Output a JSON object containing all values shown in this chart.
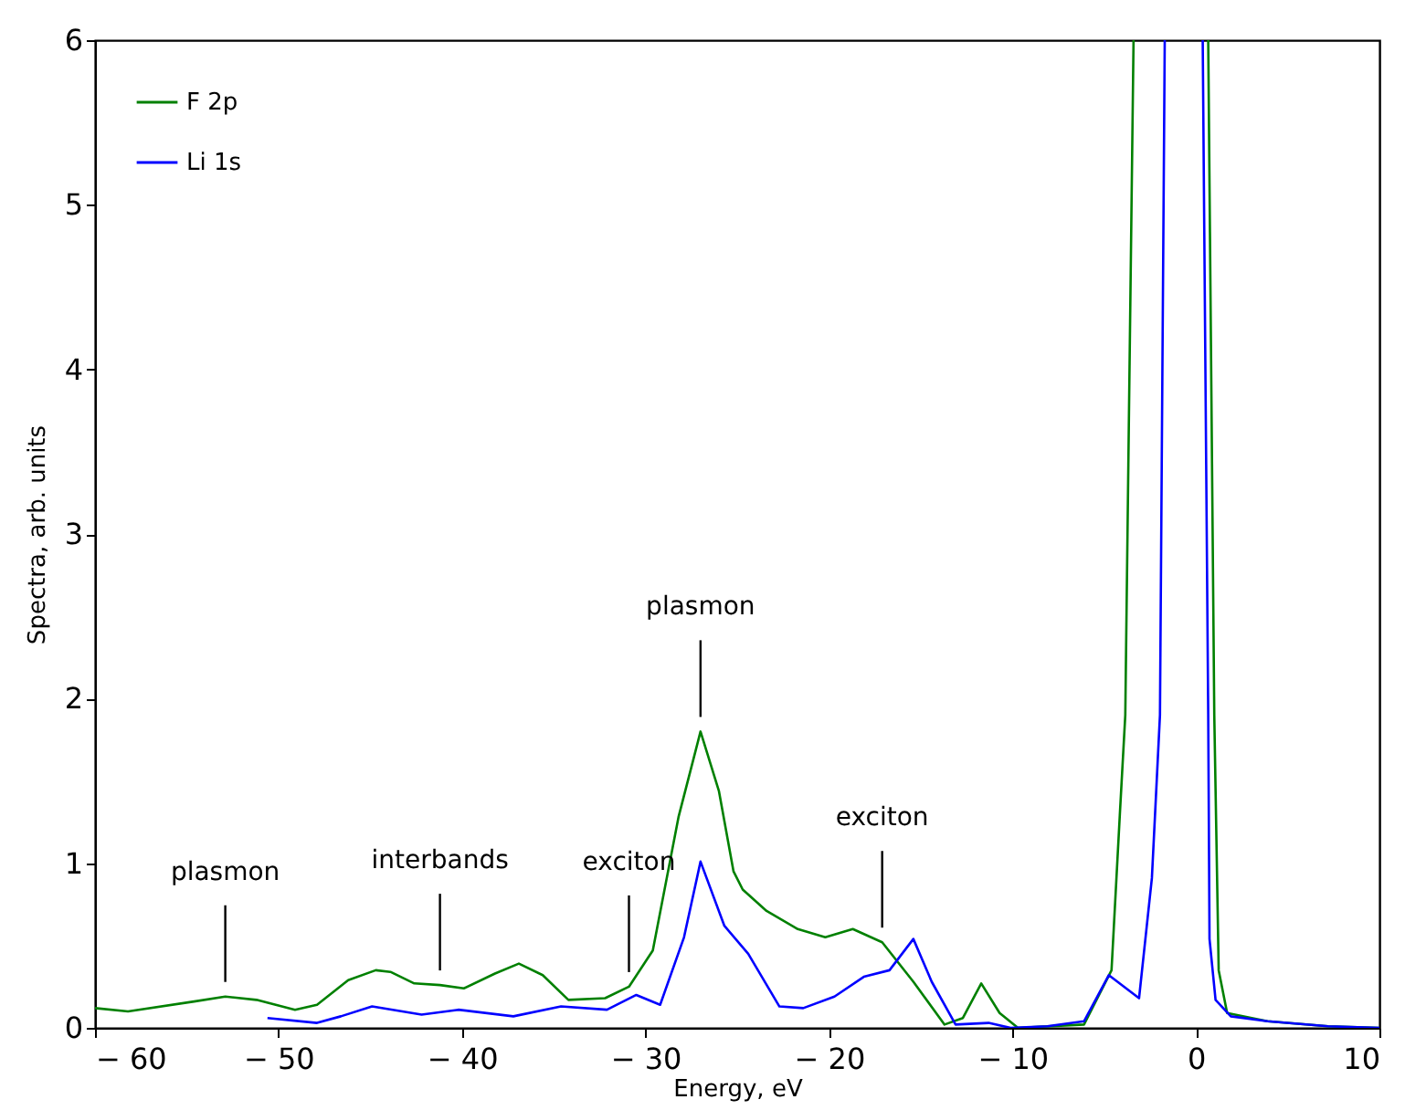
{
  "chart_data": {
    "type": "line",
    "xlabel": "Energy, eV",
    "ylabel": "Spectra, arb. units",
    "xlim": [
      -60,
      10
    ],
    "xticks": [
      {
        "value": -60,
        "label": "− 60"
      },
      {
        "value": -50,
        "label": "− 50"
      },
      {
        "value": -40,
        "label": "− 40"
      },
      {
        "value": -30,
        "label": "− 30"
      },
      {
        "value": -20,
        "label": "− 20"
      },
      {
        "value": -10,
        "label": "− 10"
      },
      0,
      10
    ],
    "ylim": [
      0,
      6
    ],
    "yticks": [
      0,
      1,
      2,
      3,
      4,
      5,
      6
    ],
    "grid": false,
    "legend": "top left",
    "marker": "none",
    "line_style": "solid",
    "series": [
      {
        "name": "F 2p",
        "color": "#008000",
        "x": [
          -60,
          -58.2,
          -54.6,
          -52.9,
          -51.2,
          -49.1,
          -47.9,
          -46.2,
          -44.7,
          -43.9,
          -42.6,
          -41.2,
          -39.9,
          -38.2,
          -36.9,
          -35.6,
          -34.2,
          -32.2,
          -30.9,
          -29.6,
          -28.2,
          -27,
          -26,
          -25.2,
          -24.7,
          -23.4,
          -21.7,
          -20.2,
          -18.7,
          -17.1,
          -15.4,
          -13.7,
          -12.7,
          -11.7,
          -10.7,
          -9.7,
          -6.1,
          -4.6,
          -4.15,
          -3.85,
          -3.4,
          -1.5,
          0.67,
          1.0,
          1.24,
          1.7,
          3.9,
          7.2,
          10
        ],
        "values": [
          0.12,
          0.1,
          0.16,
          0.19,
          0.17,
          0.11,
          0.14,
          0.29,
          0.35,
          0.34,
          0.27,
          0.26,
          0.24,
          0.33,
          0.39,
          0.32,
          0.17,
          0.18,
          0.25,
          0.47,
          1.28,
          1.8,
          1.44,
          0.95,
          0.84,
          0.71,
          0.6,
          0.55,
          0.6,
          0.52,
          0.28,
          0.02,
          0.06,
          0.27,
          0.09,
          0,
          0.02,
          0.35,
          1.29,
          1.9,
          6,
          null,
          6,
          1.9,
          0.35,
          0.09,
          0.04,
          0.01,
          0
        ]
      },
      {
        "name": "Li 1s",
        "color": "#0000ff",
        "x": [
          -50.6,
          -47.9,
          -46.6,
          -44.9,
          -42.2,
          -40.2,
          -37.2,
          -34.6,
          -32.1,
          -30.5,
          -29.2,
          -27.9,
          -27,
          -25.7,
          -24.4,
          -22.7,
          -21.4,
          -19.7,
          -18.1,
          -16.7,
          -15.4,
          -14.4,
          -13.1,
          -11.3,
          -10.1,
          -8.1,
          -6.1,
          -4.75,
          -3.1,
          -2.4,
          -1.96,
          -1.7,
          -0.6,
          0.37,
          0.67,
          0.74,
          1.07,
          1.9,
          3.9,
          7.2,
          10
        ],
        "values": [
          0.06,
          0.03,
          0.07,
          0.13,
          0.08,
          0.11,
          0.07,
          0.13,
          0.11,
          0.2,
          0.14,
          0.55,
          1.01,
          0.62,
          0.45,
          0.13,
          0.12,
          0.19,
          0.31,
          0.35,
          0.54,
          0.28,
          0.02,
          0.03,
          0,
          0.01,
          0.04,
          0.32,
          0.18,
          0.91,
          1.9,
          6,
          null,
          6,
          1.9,
          0.54,
          0.17,
          0.07,
          0.04,
          0.01,
          0
        ]
      }
    ],
    "annotations": [
      {
        "text": "plasmon",
        "x": -52.9,
        "y": 0.19
      },
      {
        "text": "interbands",
        "x": -41.2,
        "y": 0.26
      },
      {
        "text": "exciton",
        "x": -30.9,
        "y": 0.25
      },
      {
        "text": "plasmon",
        "x": -27,
        "y": 1.8
      },
      {
        "text": "exciton",
        "x": -17.1,
        "y": 0.52
      }
    ]
  }
}
